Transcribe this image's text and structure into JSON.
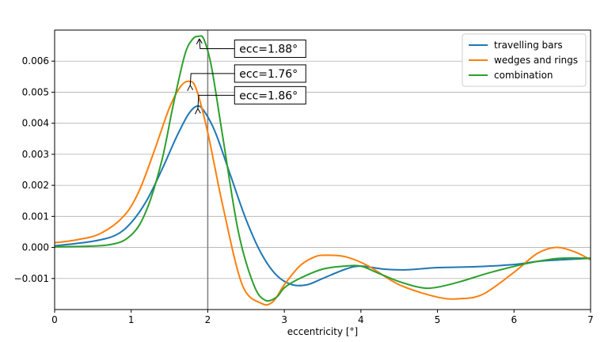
{
  "chart_data": {
    "type": "line",
    "xlabel": "eccentricity [°]",
    "ylabel": "",
    "xlim": [
      0,
      7
    ],
    "ylim": [
      -0.002,
      0.007
    ],
    "x_ticks": [
      0,
      1,
      2,
      3,
      4,
      5,
      6,
      7
    ],
    "x_tick_labels": [
      "0",
      "1",
      "2",
      "3",
      "4",
      "5",
      "6",
      "7"
    ],
    "y_ticks": [
      -0.001,
      0.0,
      0.001,
      0.002,
      0.003,
      0.004,
      0.005,
      0.006
    ],
    "y_tick_labels": [
      "−0.001",
      "0.000",
      "0.001",
      "0.002",
      "0.003",
      "0.004",
      "0.005",
      "0.006"
    ],
    "grid": "horizontal",
    "legend_position": "top-right",
    "vline_x": 2.0,
    "series": [
      {
        "name": "travelling bars",
        "color": "#1f77b4",
        "x": [
          0,
          0.5,
          0.8,
          1.0,
          1.2,
          1.4,
          1.6,
          1.75,
          1.86,
          1.95,
          2.1,
          2.3,
          2.5,
          2.7,
          2.9,
          3.1,
          3.3,
          3.5,
          3.8,
          4.0,
          4.3,
          4.6,
          5.0,
          5.5,
          6.0,
          6.3,
          6.6,
          7.0
        ],
        "y": [
          5e-05,
          0.0002,
          0.0004,
          0.0008,
          0.0015,
          0.0025,
          0.0036,
          0.0043,
          0.00455,
          0.0044,
          0.0037,
          0.0023,
          0.0009,
          -0.0002,
          -0.0009,
          -0.0012,
          -0.0012,
          -0.001,
          -0.0007,
          -0.0006,
          -0.0007,
          -0.00072,
          -0.00065,
          -0.00062,
          -0.00055,
          -0.00045,
          -0.0004,
          -0.00035
        ]
      },
      {
        "name": "wedges and rings",
        "color": "#ff7f0e",
        "x": [
          0,
          0.3,
          0.6,
          0.9,
          1.1,
          1.3,
          1.5,
          1.65,
          1.76,
          1.85,
          2.0,
          2.2,
          2.45,
          2.7,
          2.85,
          3.0,
          3.2,
          3.4,
          3.55,
          3.8,
          4.1,
          4.5,
          5.0,
          5.3,
          5.6,
          6.0,
          6.3,
          6.55,
          6.8,
          7.0
        ],
        "y": [
          0.00015,
          0.00025,
          0.00045,
          0.001,
          0.0018,
          0.0031,
          0.0045,
          0.0052,
          0.00535,
          0.0051,
          0.0037,
          0.0013,
          -0.0012,
          -0.0018,
          -0.00175,
          -0.0012,
          -0.0006,
          -0.0003,
          -0.00025,
          -0.0003,
          -0.0006,
          -0.0012,
          -0.0016,
          -0.00165,
          -0.0015,
          -0.0008,
          -0.0002,
          0.0,
          -0.00015,
          -0.0004
        ]
      },
      {
        "name": "combination",
        "color": "#2ca02c",
        "x": [
          0,
          0.7,
          1.0,
          1.2,
          1.4,
          1.55,
          1.7,
          1.8,
          1.88,
          1.95,
          2.05,
          2.2,
          2.4,
          2.6,
          2.75,
          2.9,
          3.0,
          3.2,
          3.5,
          3.8,
          4.0,
          4.2,
          4.5,
          4.8,
          5.0,
          5.3,
          5.7,
          6.2,
          6.6,
          7.0
        ],
        "y": [
          2e-05,
          8e-05,
          0.0004,
          0.0012,
          0.0028,
          0.0046,
          0.0062,
          0.0067,
          0.0068,
          0.0067,
          0.0058,
          0.0035,
          0.0005,
          -0.0012,
          -0.0017,
          -0.0016,
          -0.0013,
          -0.001,
          -0.0007,
          -0.0006,
          -0.0006,
          -0.0008,
          -0.0011,
          -0.0013,
          -0.00128,
          -0.0011,
          -0.0008,
          -0.0005,
          -0.00035,
          -0.00035
        ]
      }
    ],
    "annotations": [
      {
        "text": "ecc=1.88°",
        "x": 1.88,
        "y": 0.0068,
        "box_x": 2.35,
        "box_y": 0.0064
      },
      {
        "text": "ecc=1.76°",
        "x": 1.76,
        "y": 0.0053,
        "box_x": 2.35,
        "box_y": 0.0056
      },
      {
        "text": "ecc=1.86°",
        "x": 1.86,
        "y": 0.00455,
        "box_x": 2.35,
        "box_y": 0.0049
      }
    ]
  }
}
